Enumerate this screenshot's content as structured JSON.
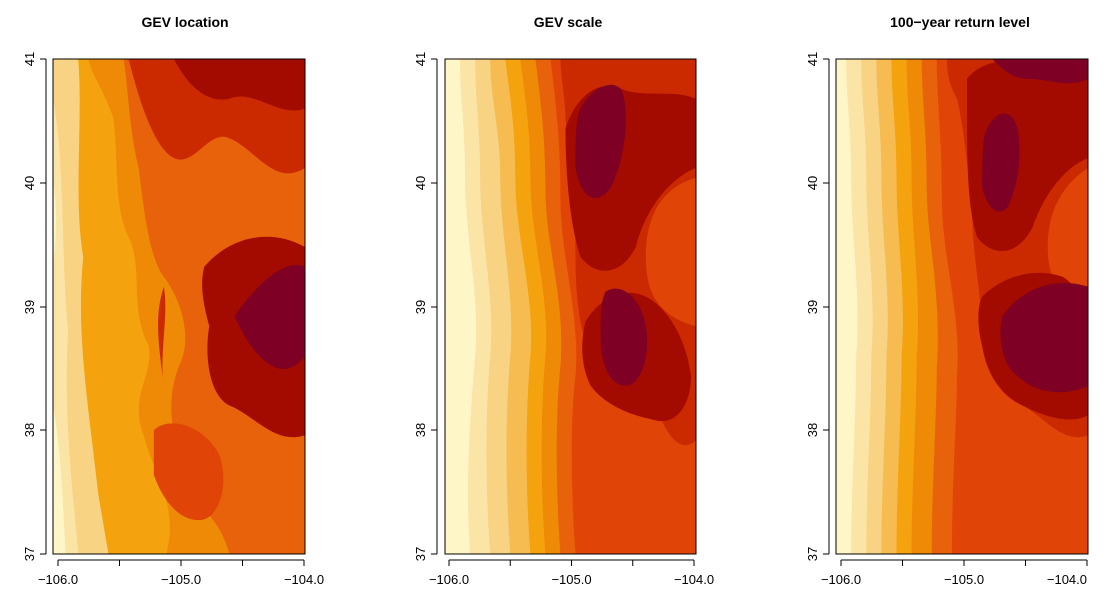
{
  "chart_data": [
    {
      "type": "heatmap",
      "title": "GEV location",
      "xlabel": "",
      "ylabel": "",
      "xlim": [
        -106.05,
        -104.0
      ],
      "ylim": [
        37.0,
        41.0
      ],
      "x_ticks": [
        -106.0,
        -105.5,
        -105.0,
        -104.5,
        -104.0
      ],
      "x_tick_labels": [
        "−106.0",
        "",
        "−105.0",
        "",
        "−104.0"
      ],
      "y_ticks": [
        37,
        38,
        39,
        40,
        41
      ],
      "y_tick_labels": [
        "37",
        "38",
        "39",
        "40",
        "41"
      ],
      "grid": false,
      "colormap": "heat.colors (reversed)",
      "palette": [
        "#fff6c8",
        "#fbe5a6",
        "#f8d384",
        "#f6bc52",
        "#f4a20e",
        "#ee8a06",
        "#e8610b",
        "#e04406",
        "#cb2900",
        "#a30a00",
        "#7e0024"
      ],
      "regions": [
        {
          "center": [
            -105.95,
            39.9
          ],
          "level": 1
        },
        {
          "center": [
            -105.75,
            38.4
          ],
          "level": 2
        },
        {
          "center": [
            -105.4,
            37.6
          ],
          "level": 4
        },
        {
          "center": [
            -105.1,
            39.6
          ],
          "level": 6
        },
        {
          "center": [
            -104.8,
            37.8
          ],
          "level": 7
        },
        {
          "center": [
            -104.75,
            40.75
          ],
          "level": 8
        },
        {
          "center": [
            -104.55,
            39.1
          ],
          "level": 9
        },
        {
          "center": [
            -104.2,
            38.95
          ],
          "level": 10
        }
      ]
    },
    {
      "type": "heatmap",
      "title": "GEV scale",
      "xlabel": "",
      "ylabel": "",
      "xlim": [
        -106.05,
        -104.0
      ],
      "ylim": [
        37.0,
        41.0
      ],
      "x_ticks": [
        -106.0,
        -105.5,
        -105.0,
        -104.5,
        -104.0
      ],
      "x_tick_labels": [
        "−106.0",
        "",
        "−105.0",
        "",
        "−104.0"
      ],
      "y_ticks": [
        37,
        38,
        39,
        40,
        41
      ],
      "y_tick_labels": [
        "37",
        "38",
        "39",
        "40",
        "41"
      ],
      "grid": false,
      "colormap": "heat.colors (reversed)",
      "palette": [
        "#fff6c8",
        "#fbe5a6",
        "#f8d384",
        "#f6bc52",
        "#f4a20e",
        "#ee8a06",
        "#e8610b",
        "#e04406",
        "#cb2900",
        "#a30a00",
        "#7e0024"
      ],
      "regions": [
        {
          "center": [
            -105.95,
            39.0
          ],
          "level": 0
        },
        {
          "center": [
            -105.5,
            38.0
          ],
          "level": 4
        },
        {
          "center": [
            -104.2,
            37.5
          ],
          "level": 7
        },
        {
          "center": [
            -104.15,
            39.85
          ],
          "level": 7
        },
        {
          "center": [
            -104.6,
            40.5
          ],
          "level": 9
        },
        {
          "center": [
            -104.75,
            40.3
          ],
          "level": 10
        },
        {
          "center": [
            -104.48,
            38.85
          ],
          "level": 10
        }
      ]
    },
    {
      "type": "heatmap",
      "title": "100−year return level",
      "xlabel": "",
      "ylabel": "",
      "xlim": [
        -106.05,
        -104.0
      ],
      "ylim": [
        37.0,
        41.0
      ],
      "x_ticks": [
        -106.0,
        -105.5,
        -105.0,
        -104.5,
        -104.0
      ],
      "x_tick_labels": [
        "−106.0",
        "",
        "−105.0",
        "",
        "−104.0"
      ],
      "y_ticks": [
        37,
        38,
        39,
        40,
        41
      ],
      "y_tick_labels": [
        "37",
        "38",
        "39",
        "40",
        "41"
      ],
      "grid": false,
      "colormap": "heat.colors (reversed)",
      "palette": [
        "#fff6c8",
        "#fbe5a6",
        "#f8d384",
        "#f6bc52",
        "#f4a20e",
        "#ee8a06",
        "#e8610b",
        "#e04406",
        "#cb2900",
        "#a30a00",
        "#7e0024"
      ],
      "regions": [
        {
          "center": [
            -105.95,
            39.0
          ],
          "level": 1
        },
        {
          "center": [
            -105.3,
            38.5
          ],
          "level": 5
        },
        {
          "center": [
            -104.6,
            37.5
          ],
          "level": 7
        },
        {
          "center": [
            -104.15,
            39.85
          ],
          "level": 7
        },
        {
          "center": [
            -104.7,
            40.5
          ],
          "level": 9
        },
        {
          "center": [
            -104.8,
            40.3
          ],
          "level": 10
        },
        {
          "center": [
            -104.3,
            38.9
          ],
          "level": 10
        }
      ]
    }
  ]
}
